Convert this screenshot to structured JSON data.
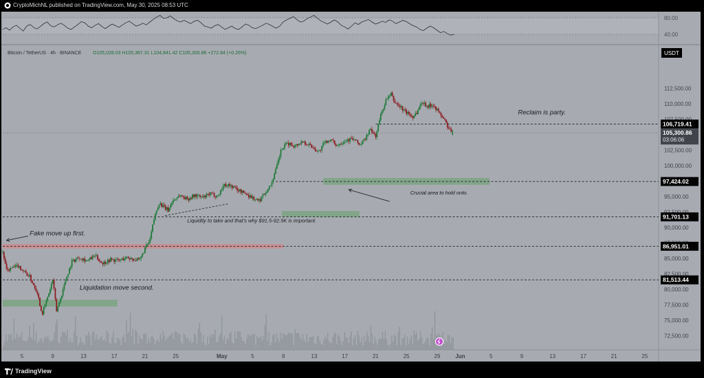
{
  "header": {
    "publisher_line": "CryptoMichNL published on TradingView.com, May 30, 2025 08:53 UTC"
  },
  "footer": {
    "brand": "TradingView"
  },
  "symbol_line": {
    "pair": "Bitcoin / TetherUS · 4h · BINANCE",
    "ohlc": "O105,028.03  H105,367.31  L104,841.42  C105,300.86  +272.84 (+0.26%)"
  },
  "currency_badge": "USDT",
  "colors": {
    "up": "#1f7a3a",
    "down": "#8c1c22",
    "bg": "#a7abb1",
    "green_zone": "#7fa487",
    "red_zone": "#c98e92"
  },
  "oscillator": {
    "ticks": [
      "80.00",
      "40.00"
    ],
    "range": [
      20,
      90
    ],
    "band": [
      40,
      80
    ],
    "values": [
      52,
      56,
      50,
      58,
      62,
      55,
      48,
      60,
      64,
      57,
      53,
      59,
      66,
      70,
      61,
      58,
      63,
      67,
      62,
      55,
      52,
      58,
      64,
      71,
      68,
      60,
      56,
      62,
      66,
      59,
      54,
      60,
      65,
      61,
      57,
      63,
      68,
      72,
      66,
      60,
      63,
      67,
      63,
      70,
      76,
      82,
      86,
      79,
      80,
      85,
      78,
      73,
      70,
      74,
      70,
      66,
      72,
      74,
      68,
      60,
      58,
      55,
      61,
      64,
      58,
      52,
      56,
      60,
      54,
      52,
      58,
      65,
      62,
      56,
      54,
      58,
      62,
      67,
      64,
      59,
      55,
      60,
      70,
      75,
      79,
      83,
      76,
      70,
      72,
      78,
      82,
      86,
      79,
      73,
      69,
      65,
      70,
      75,
      70,
      62,
      58,
      53,
      60,
      68,
      64,
      70,
      73,
      76,
      70,
      65,
      68,
      72,
      69,
      75,
      72,
      66,
      70,
      74,
      71,
      66,
      61,
      58,
      52,
      49,
      55,
      60,
      56,
      50,
      44,
      47,
      42,
      38,
      40
    ]
  },
  "chart_data": {
    "type": "candlestick",
    "timeframe": "4h",
    "y_axis_ticks": [
      "112,500.00",
      "110,000.00",
      "107,500.00",
      "105,000.00",
      "102,500.00",
      "100,000.00",
      "97,500.00",
      "95,000.00",
      "92,500.00",
      "90,000.00",
      "87,500.00",
      "85,000.00",
      "82,500.00",
      "80,000.00",
      "77,500.00",
      "75,000.00",
      "72,500.00"
    ],
    "y_tick_values": [
      112500,
      110000,
      107500,
      105000,
      102500,
      100000,
      97500,
      95000,
      92500,
      90000,
      87500,
      85000,
      82500,
      80000,
      77500,
      75000,
      72500
    ],
    "x_axis_ticks": [
      "5",
      "9",
      "13",
      "17",
      "21",
      "25",
      "May",
      "5",
      "9",
      "13",
      "17",
      "21",
      "25",
      "29",
      "Jun",
      "5",
      "9",
      "13",
      "17",
      "21",
      "25"
    ],
    "x_tick_days": [
      5,
      9,
      13,
      17,
      21,
      25,
      31,
      35,
      39,
      43,
      47,
      51,
      55,
      59,
      62,
      66,
      70,
      74,
      78,
      82,
      86
    ],
    "x_range_days": [
      2.5,
      87.8
    ],
    "ylim": [
      70200,
      117000
    ],
    "price_path": [
      [
        2.5,
        86000
      ],
      [
        3.0,
        83000
      ],
      [
        4.5,
        83800
      ],
      [
        6.0,
        82000
      ],
      [
        7.0,
        79500
      ],
      [
        7.6,
        76000
      ],
      [
        8.3,
        78500
      ],
      [
        9.0,
        81500
      ],
      [
        9.5,
        76500
      ],
      [
        10.0,
        78500
      ],
      [
        10.8,
        82000
      ],
      [
        11.5,
        84500
      ],
      [
        12.5,
        85200
      ],
      [
        13.5,
        84600
      ],
      [
        14.5,
        85400
      ],
      [
        15.5,
        84200
      ],
      [
        16.5,
        84800
      ],
      [
        17.5,
        84600
      ],
      [
        18.5,
        85100
      ],
      [
        19.5,
        84900
      ],
      [
        20.3,
        84600
      ],
      [
        21.0,
        86600
      ],
      [
        21.6,
        87700
      ],
      [
        22.2,
        91500
      ],
      [
        22.8,
        94000
      ],
      [
        23.5,
        93200
      ],
      [
        24.0,
        92800
      ],
      [
        24.6,
        94300
      ],
      [
        25.5,
        95200
      ],
      [
        26.5,
        94600
      ],
      [
        27.5,
        95200
      ],
      [
        28.5,
        94800
      ],
      [
        29.5,
        95400
      ],
      [
        30.5,
        95100
      ],
      [
        31.2,
        96800
      ],
      [
        31.8,
        96900
      ],
      [
        32.5,
        96500
      ],
      [
        33.2,
        96000
      ],
      [
        34.0,
        95500
      ],
      [
        35.0,
        94800
      ],
      [
        35.8,
        94200
      ],
      [
        36.5,
        95500
      ],
      [
        37.3,
        96700
      ],
      [
        38.0,
        99200
      ],
      [
        38.7,
        102500
      ],
      [
        39.5,
        103600
      ],
      [
        40.5,
        103200
      ],
      [
        41.5,
        103900
      ],
      [
        42.3,
        103400
      ],
      [
        43.0,
        102800
      ],
      [
        43.6,
        102200
      ],
      [
        44.3,
        103600
      ],
      [
        45.0,
        104200
      ],
      [
        46.0,
        103300
      ],
      [
        47.0,
        104100
      ],
      [
        48.0,
        104300
      ],
      [
        49.0,
        103400
      ],
      [
        49.6,
        104200
      ],
      [
        50.2,
        105800
      ],
      [
        51.0,
        104800
      ],
      [
        51.6,
        107900
      ],
      [
        52.3,
        110500
      ],
      [
        53.0,
        111500
      ],
      [
        53.5,
        110200
      ],
      [
        54.2,
        109500
      ],
      [
        55.0,
        108600
      ],
      [
        55.8,
        107900
      ],
      [
        56.4,
        108700
      ],
      [
        57.0,
        110300
      ],
      [
        57.8,
        109600
      ],
      [
        58.5,
        109900
      ],
      [
        59.2,
        108600
      ],
      [
        60.0,
        107300
      ],
      [
        60.5,
        105900
      ],
      [
        61.0,
        105300
      ]
    ],
    "volume_ylim": [
      0,
      100
    ],
    "volume_seed": 7,
    "horizontal_levels": [
      {
        "price": 106719.41,
        "label": "106,719.41",
        "style": "dashed",
        "from_day": 51
      },
      {
        "price": 97424.02,
        "label": "97,424.02",
        "style": "dashed",
        "from_day": 38
      },
      {
        "price": 91701.13,
        "label": "91,701.13",
        "style": "dashed",
        "from_day": 2.5
      },
      {
        "price": 86951.01,
        "label": "86,951.01",
        "style": "dashed",
        "from_day": 2.5
      },
      {
        "price": 81513.44,
        "label": "81,513.44",
        "style": "dashed",
        "from_day": 2.5
      }
    ],
    "current_price": {
      "label": "105,300.86",
      "countdown": "03:06:06",
      "price": 105300.86
    },
    "zones": [
      {
        "kind": "support",
        "from_day": 2.5,
        "to_day": 17.4,
        "p1": 77200,
        "p2": 78300
      },
      {
        "kind": "resistance",
        "from_day": 2.5,
        "to_day": 39.0,
        "p1": 86600,
        "p2": 87300
      },
      {
        "kind": "support",
        "from_day": 38.8,
        "to_day": 48.9,
        "p1": 91700,
        "p2": 92650
      },
      {
        "kind": "support",
        "from_day": 44.2,
        "to_day": 65.8,
        "p1": 96900,
        "p2": 98000
      }
    ],
    "annotations": [
      {
        "text": "Reclaim is party.",
        "day": 69.5,
        "price": 108250,
        "style": "large"
      },
      {
        "text": "Crucial area to hold onto.",
        "day": 55.5,
        "price": 95300,
        "style": "italic"
      },
      {
        "text": "Liquidity to take and that's why $91.5-92.5K is important.",
        "day": 26.5,
        "price": 90800,
        "style": "italic"
      },
      {
        "text": "Fake move up first.",
        "day": 6.0,
        "price": 88700,
        "style": "large"
      },
      {
        "text": "Liquidation move second.",
        "day": 12.5,
        "price": 79900,
        "style": "large"
      }
    ]
  }
}
